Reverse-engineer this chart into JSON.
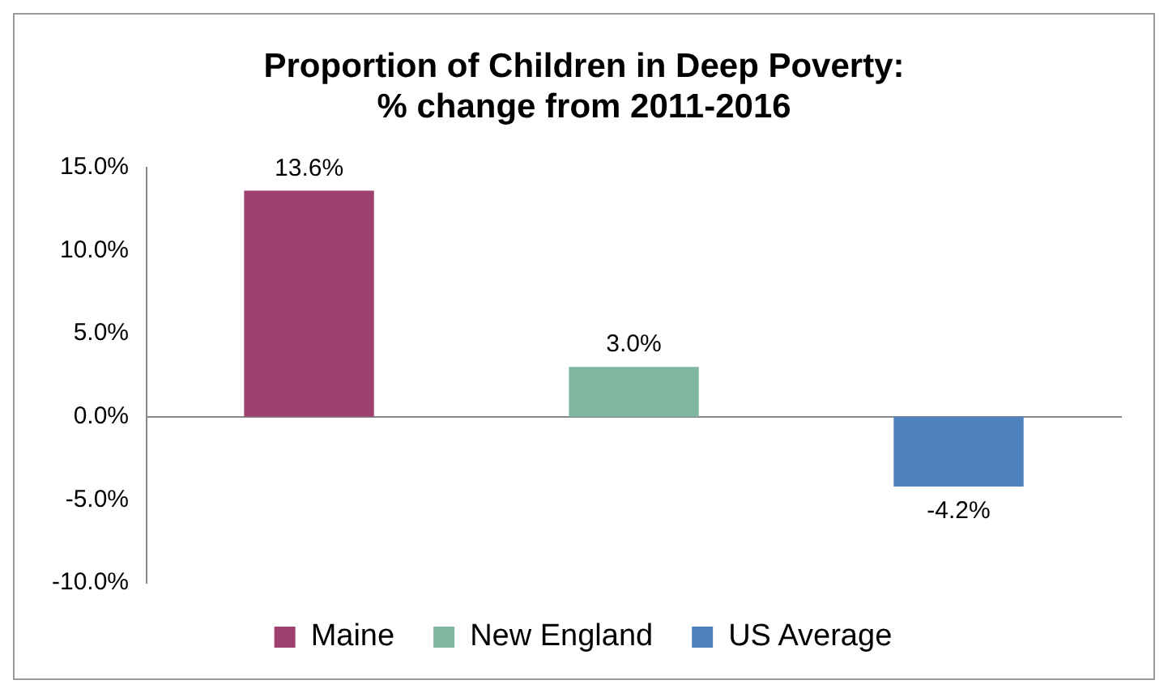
{
  "chart_data": {
    "type": "bar",
    "title": "Proportion of Children in Deep Poverty:\n% change from 2011-2016",
    "categories": [
      null,
      null,
      null
    ],
    "series": [
      {
        "name": "Maine",
        "color": "#9e416f",
        "values": [
          13.6,
          null,
          null
        ],
        "value_labels": [
          "13.6%",
          null,
          null
        ]
      },
      {
        "name": "New England",
        "color": "#80b89f",
        "values": [
          null,
          3.0,
          null
        ],
        "value_labels": [
          null,
          "3.0%",
          null
        ]
      },
      {
        "name": "US Average",
        "color": "#4f81bd",
        "values": [
          null,
          null,
          -4.2
        ],
        "value_labels": [
          null,
          null,
          "-4.2%"
        ]
      }
    ],
    "ylim": [
      -10,
      15
    ],
    "yticks": [
      {
        "value": -10,
        "label": "-10.0%"
      },
      {
        "value": -5,
        "label": "-5.0%"
      },
      {
        "value": 0,
        "label": "0.0%"
      },
      {
        "value": 5,
        "label": "5.0%"
      },
      {
        "value": 10,
        "label": "10.0%"
      },
      {
        "value": 15,
        "label": "15.0%"
      }
    ],
    "legend": "bottom"
  }
}
